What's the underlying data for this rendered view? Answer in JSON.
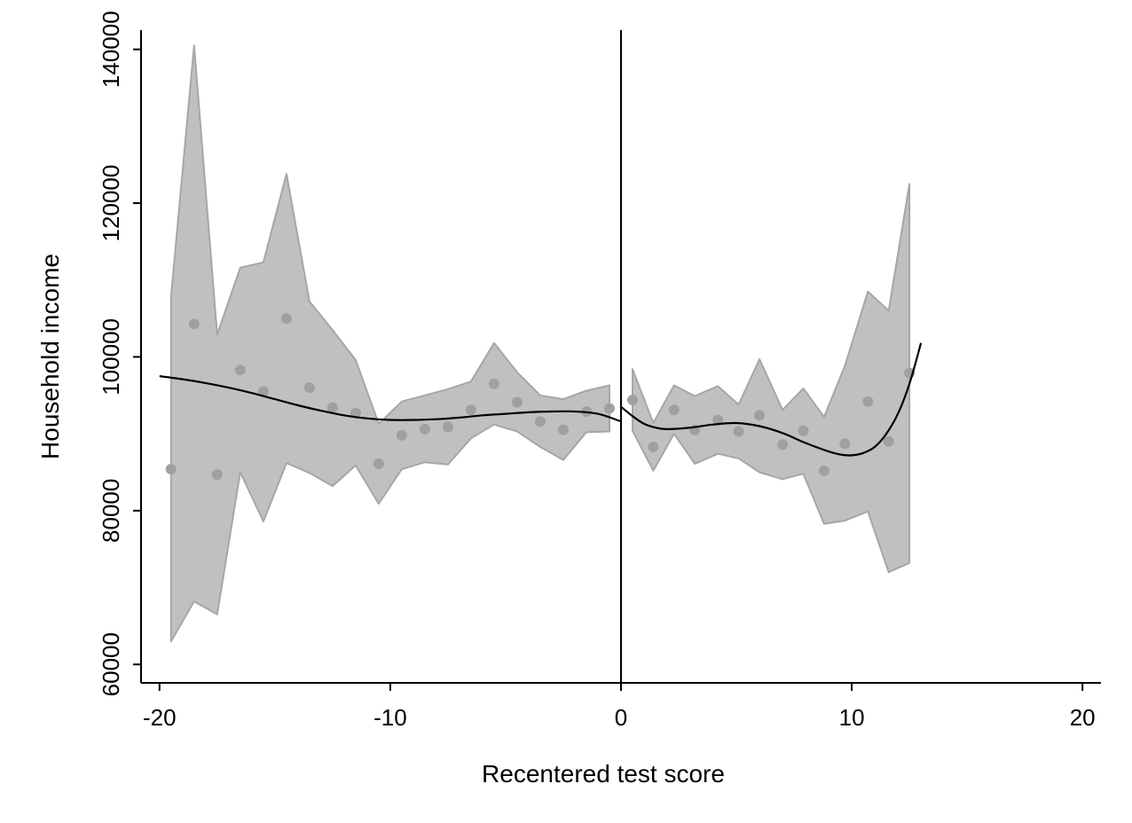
{
  "chart_data": {
    "type": "scatter",
    "xlabel": "Recentered test score",
    "ylabel": "Household income",
    "xlim": [
      -20.8,
      20.8
    ],
    "ylim": [
      57600,
      142500
    ],
    "xticks": [
      -20,
      -10,
      0,
      10,
      20
    ],
    "yticks": [
      60000,
      80000,
      100000,
      120000,
      140000
    ],
    "xtick_labels": [
      "-20",
      "-10",
      "0",
      "10",
      "20"
    ],
    "ytick_labels": [
      "60000",
      "80000",
      "100000",
      "120000",
      "140000"
    ],
    "cutoff_x": 0,
    "grid": false,
    "legend": "none",
    "colors": {
      "band": "#c0c0c0",
      "band_edge": "#a6a6a6",
      "points": "#a0a0a0",
      "fit": "#000000",
      "axis": "#000000"
    },
    "bins": {
      "left": [
        {
          "x": -19.5,
          "y": 85400,
          "lo": 63000,
          "hi": 107800
        },
        {
          "x": -18.5,
          "y": 104300,
          "lo": 68200,
          "hi": 140500
        },
        {
          "x": -17.5,
          "y": 84700,
          "lo": 66500,
          "hi": 102900
        },
        {
          "x": -16.5,
          "y": 98300,
          "lo": 85000,
          "hi": 111600
        },
        {
          "x": -15.5,
          "y": 95500,
          "lo": 78600,
          "hi": 112300
        },
        {
          "x": -14.5,
          "y": 105000,
          "lo": 86200,
          "hi": 123800
        },
        {
          "x": -13.5,
          "y": 96000,
          "lo": 84900,
          "hi": 107200
        },
        {
          "x": -12.5,
          "y": 93400,
          "lo": 83200,
          "hi": 103500
        },
        {
          "x": -11.5,
          "y": 92700,
          "lo": 85900,
          "hi": 99600
        },
        {
          "x": -10.5,
          "y": 86100,
          "lo": 80900,
          "hi": 91300
        },
        {
          "x": -9.5,
          "y": 89800,
          "lo": 85400,
          "hi": 94200
        },
        {
          "x": -8.5,
          "y": 90600,
          "lo": 86300,
          "hi": 95000
        },
        {
          "x": -7.5,
          "y": 90900,
          "lo": 86000,
          "hi": 95800
        },
        {
          "x": -6.5,
          "y": 93100,
          "lo": 89400,
          "hi": 96800
        },
        {
          "x": -5.5,
          "y": 96500,
          "lo": 91200,
          "hi": 101800
        },
        {
          "x": -4.5,
          "y": 94100,
          "lo": 90300,
          "hi": 98000
        },
        {
          "x": -3.5,
          "y": 91600,
          "lo": 88300,
          "hi": 95000
        },
        {
          "x": -2.5,
          "y": 90500,
          "lo": 86600,
          "hi": 94500
        },
        {
          "x": -1.5,
          "y": 92900,
          "lo": 90200,
          "hi": 95600
        },
        {
          "x": -0.5,
          "y": 93300,
          "lo": 90300,
          "hi": 96300
        }
      ],
      "right": [
        {
          "x": 0.5,
          "y": 94400,
          "lo": 90400,
          "hi": 98400
        },
        {
          "x": 1.4,
          "y": 88300,
          "lo": 85200,
          "hi": 91400
        },
        {
          "x": 2.3,
          "y": 93100,
          "lo": 90000,
          "hi": 96300
        },
        {
          "x": 3.2,
          "y": 90500,
          "lo": 86100,
          "hi": 94900
        },
        {
          "x": 4.2,
          "y": 91800,
          "lo": 87400,
          "hi": 96200
        },
        {
          "x": 5.1,
          "y": 90300,
          "lo": 86800,
          "hi": 93800
        },
        {
          "x": 6.0,
          "y": 92400,
          "lo": 85000,
          "hi": 99700
        },
        {
          "x": 7.0,
          "y": 88600,
          "lo": 84100,
          "hi": 93100
        },
        {
          "x": 7.9,
          "y": 90400,
          "lo": 84800,
          "hi": 95900
        },
        {
          "x": 8.8,
          "y": 85200,
          "lo": 78300,
          "hi": 92200
        },
        {
          "x": 9.7,
          "y": 88700,
          "lo": 78700,
          "hi": 98800
        },
        {
          "x": 10.7,
          "y": 94200,
          "lo": 79900,
          "hi": 108500
        },
        {
          "x": 11.6,
          "y": 89000,
          "lo": 72000,
          "hi": 106000
        },
        {
          "x": 12.5,
          "y": 97900,
          "lo": 73200,
          "hi": 122500
        }
      ]
    },
    "fit": {
      "left": [
        {
          "x": -20,
          "y": 97500
        },
        {
          "x": -19,
          "y": 97100
        },
        {
          "x": -18,
          "y": 96600
        },
        {
          "x": -17,
          "y": 96000
        },
        {
          "x": -16,
          "y": 95300
        },
        {
          "x": -15,
          "y": 94500
        },
        {
          "x": -14,
          "y": 93700
        },
        {
          "x": -13,
          "y": 93000
        },
        {
          "x": -12,
          "y": 92400
        },
        {
          "x": -11,
          "y": 92000
        },
        {
          "x": -10,
          "y": 91800
        },
        {
          "x": -9,
          "y": 91800
        },
        {
          "x": -8,
          "y": 91900
        },
        {
          "x": -7,
          "y": 92100
        },
        {
          "x": -6,
          "y": 92400
        },
        {
          "x": -5,
          "y": 92600
        },
        {
          "x": -4,
          "y": 92800
        },
        {
          "x": -3,
          "y": 92900
        },
        {
          "x": -2,
          "y": 92900
        },
        {
          "x": -1,
          "y": 92600
        },
        {
          "x": 0,
          "y": 91600
        }
      ],
      "right": [
        {
          "x": 0,
          "y": 93500
        },
        {
          "x": 0.5,
          "y": 92300
        },
        {
          "x": 1,
          "y": 91300
        },
        {
          "x": 1.5,
          "y": 90800
        },
        {
          "x": 2,
          "y": 90600
        },
        {
          "x": 3,
          "y": 90800
        },
        {
          "x": 4,
          "y": 91200
        },
        {
          "x": 5,
          "y": 91400
        },
        {
          "x": 6,
          "y": 91000
        },
        {
          "x": 7,
          "y": 90100
        },
        {
          "x": 8,
          "y": 88800
        },
        {
          "x": 9,
          "y": 87700
        },
        {
          "x": 9.5,
          "y": 87300
        },
        {
          "x": 10,
          "y": 87200
        },
        {
          "x": 10.5,
          "y": 87500
        },
        {
          "x": 11,
          "y": 88300
        },
        {
          "x": 11.5,
          "y": 90000
        },
        {
          "x": 12,
          "y": 92600
        },
        {
          "x": 12.5,
          "y": 96500
        },
        {
          "x": 13,
          "y": 101800
        }
      ]
    }
  }
}
